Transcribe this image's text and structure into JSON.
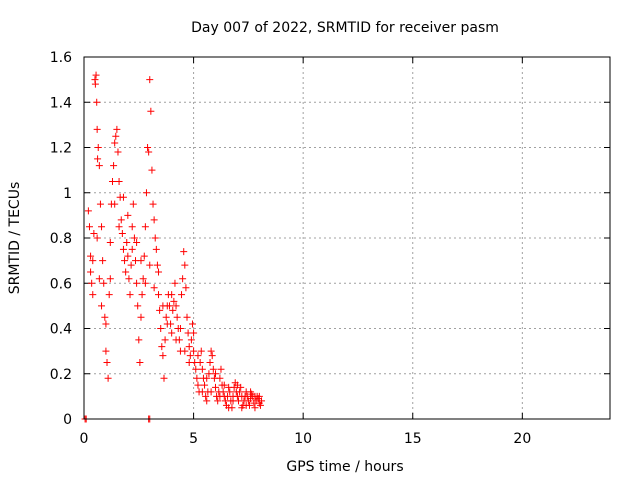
{
  "chart_data": {
    "type": "scatter",
    "title": "Day 007 of 2022, SRMTID for receiver pasm",
    "xlabel": "GPS time / hours",
    "ylabel": "SRMTID / TECUs",
    "xlim": [
      0,
      24
    ],
    "ylim": [
      0,
      1.6
    ],
    "xticks": [
      0,
      5,
      10,
      15,
      20
    ],
    "xtick_labels": [
      "0",
      "5",
      "10",
      "15",
      "20"
    ],
    "yticks": [
      0,
      0.2,
      0.4,
      0.6,
      0.8,
      1,
      1.2,
      1.4,
      1.6
    ],
    "ytick_labels": [
      "0",
      "0.2",
      "0.4",
      "0.6",
      "0.8",
      "1",
      "1.2",
      "1.4",
      "1.6"
    ],
    "grid": true,
    "marker": "+",
    "marker_color": "#ff0000",
    "series": [
      {
        "name": "SRMTID",
        "points": [
          [
            0.05,
            0.0
          ],
          [
            0.1,
            0.0
          ],
          [
            2.95,
            0.0
          ],
          [
            3.0,
            0.0
          ],
          [
            0.2,
            0.92
          ],
          [
            0.25,
            0.85
          ],
          [
            0.3,
            0.72
          ],
          [
            0.35,
            0.6
          ],
          [
            0.4,
            0.55
          ],
          [
            0.45,
            0.82
          ],
          [
            0.5,
            1.5
          ],
          [
            0.52,
            1.48
          ],
          [
            0.55,
            1.52
          ],
          [
            0.58,
            1.4
          ],
          [
            0.6,
            1.28
          ],
          [
            0.62,
            1.15
          ],
          [
            0.65,
            1.2
          ],
          [
            0.7,
            1.12
          ],
          [
            0.75,
            0.95
          ],
          [
            0.8,
            0.85
          ],
          [
            0.85,
            0.7
          ],
          [
            0.9,
            0.6
          ],
          [
            0.95,
            0.45
          ],
          [
            1.0,
            0.42
          ],
          [
            1.0,
            0.3
          ],
          [
            1.05,
            0.25
          ],
          [
            1.1,
            0.18
          ],
          [
            1.15,
            0.55
          ],
          [
            1.2,
            0.78
          ],
          [
            1.25,
            0.95
          ],
          [
            1.3,
            1.05
          ],
          [
            1.35,
            1.12
          ],
          [
            1.4,
            1.22
          ],
          [
            1.45,
            1.25
          ],
          [
            1.5,
            1.28
          ],
          [
            1.55,
            1.18
          ],
          [
            1.6,
            1.05
          ],
          [
            1.65,
            0.98
          ],
          [
            1.7,
            0.88
          ],
          [
            1.75,
            0.82
          ],
          [
            1.8,
            0.75
          ],
          [
            1.85,
            0.7
          ],
          [
            1.9,
            0.65
          ],
          [
            1.95,
            0.78
          ],
          [
            2.0,
            0.72
          ],
          [
            2.05,
            0.62
          ],
          [
            2.1,
            0.55
          ],
          [
            2.15,
            0.68
          ],
          [
            2.2,
            0.85
          ],
          [
            2.25,
            0.95
          ],
          [
            2.3,
            0.8
          ],
          [
            2.35,
            0.7
          ],
          [
            2.4,
            0.6
          ],
          [
            2.45,
            0.5
          ],
          [
            2.5,
            0.35
          ],
          [
            2.55,
            0.25
          ],
          [
            2.6,
            0.45
          ],
          [
            2.65,
            0.55
          ],
          [
            2.7,
            0.62
          ],
          [
            2.75,
            0.72
          ],
          [
            2.8,
            0.85
          ],
          [
            2.85,
            1.0
          ],
          [
            2.9,
            1.2
          ],
          [
            2.95,
            1.18
          ],
          [
            3.0,
            1.5
          ],
          [
            3.05,
            1.36
          ],
          [
            3.1,
            1.1
          ],
          [
            3.15,
            0.95
          ],
          [
            3.2,
            0.88
          ],
          [
            3.25,
            0.8
          ],
          [
            3.3,
            0.75
          ],
          [
            3.35,
            0.68
          ],
          [
            3.4,
            0.55
          ],
          [
            3.45,
            0.48
          ],
          [
            3.5,
            0.4
          ],
          [
            3.55,
            0.32
          ],
          [
            3.6,
            0.28
          ],
          [
            3.65,
            0.18
          ],
          [
            3.7,
            0.35
          ],
          [
            3.75,
            0.45
          ],
          [
            3.8,
            0.5
          ],
          [
            3.85,
            0.55
          ],
          [
            3.9,
            0.5
          ],
          [
            3.95,
            0.42
          ],
          [
            4.0,
            0.38
          ],
          [
            4.05,
            0.48
          ],
          [
            4.1,
            0.52
          ],
          [
            4.15,
            0.6
          ],
          [
            4.2,
            0.5
          ],
          [
            4.25,
            0.45
          ],
          [
            4.3,
            0.4
          ],
          [
            4.35,
            0.35
          ],
          [
            4.4,
            0.3
          ],
          [
            4.45,
            0.55
          ],
          [
            4.5,
            0.62
          ],
          [
            4.55,
            0.74
          ],
          [
            4.6,
            0.68
          ],
          [
            4.65,
            0.58
          ],
          [
            4.7,
            0.45
          ],
          [
            4.75,
            0.38
          ],
          [
            4.8,
            0.32
          ],
          [
            4.85,
            0.28
          ],
          [
            4.9,
            0.35
          ],
          [
            4.95,
            0.42
          ],
          [
            5.0,
            0.3
          ],
          [
            5.05,
            0.25
          ],
          [
            5.1,
            0.22
          ],
          [
            5.15,
            0.18
          ],
          [
            5.2,
            0.15
          ],
          [
            5.25,
            0.12
          ],
          [
            5.3,
            0.25
          ],
          [
            5.35,
            0.3
          ],
          [
            5.4,
            0.22
          ],
          [
            5.45,
            0.18
          ],
          [
            5.5,
            0.15
          ],
          [
            5.55,
            0.1
          ],
          [
            5.6,
            0.08
          ],
          [
            5.65,
            0.12
          ],
          [
            5.7,
            0.2
          ],
          [
            5.75,
            0.25
          ],
          [
            5.8,
            0.3
          ],
          [
            5.85,
            0.28
          ],
          [
            5.9,
            0.22
          ],
          [
            5.95,
            0.18
          ],
          [
            6.0,
            0.14
          ],
          [
            6.05,
            0.1
          ],
          [
            6.1,
            0.08
          ],
          [
            6.15,
            0.12
          ],
          [
            6.2,
            0.18
          ],
          [
            6.25,
            0.22
          ],
          [
            6.3,
            0.15
          ],
          [
            6.35,
            0.12
          ],
          [
            6.4,
            0.1
          ],
          [
            6.45,
            0.08
          ],
          [
            6.5,
            0.06
          ],
          [
            6.55,
            0.1
          ],
          [
            6.6,
            0.14
          ],
          [
            6.65,
            0.12
          ],
          [
            6.7,
            0.08
          ],
          [
            6.75,
            0.05
          ],
          [
            6.8,
            0.1
          ],
          [
            6.85,
            0.14
          ],
          [
            6.9,
            0.16
          ],
          [
            6.95,
            0.12
          ],
          [
            7.0,
            0.1
          ],
          [
            7.05,
            0.08
          ],
          [
            7.1,
            0.12
          ],
          [
            7.15,
            0.14
          ],
          [
            7.2,
            0.1
          ],
          [
            7.25,
            0.06
          ],
          [
            7.3,
            0.08
          ],
          [
            7.35,
            0.1
          ],
          [
            7.4,
            0.12
          ],
          [
            7.45,
            0.1
          ],
          [
            7.5,
            0.08
          ],
          [
            7.55,
            0.06
          ],
          [
            7.6,
            0.09
          ],
          [
            7.65,
            0.11
          ],
          [
            7.7,
            0.1
          ],
          [
            7.75,
            0.07
          ],
          [
            7.8,
            0.05
          ],
          [
            7.85,
            0.08
          ],
          [
            7.9,
            0.1
          ],
          [
            7.95,
            0.09
          ],
          [
            8.0,
            0.07
          ],
          [
            8.05,
            0.06
          ],
          [
            8.1,
            0.08
          ],
          [
            0.3,
            0.65
          ],
          [
            0.4,
            0.7
          ],
          [
            0.6,
            0.8
          ],
          [
            0.7,
            0.62
          ],
          [
            0.8,
            0.5
          ],
          [
            1.2,
            0.62
          ],
          [
            1.4,
            0.95
          ],
          [
            1.6,
            0.85
          ],
          [
            1.8,
            0.98
          ],
          [
            2.0,
            0.9
          ],
          [
            2.2,
            0.75
          ],
          [
            2.4,
            0.78
          ],
          [
            2.6,
            0.7
          ],
          [
            2.8,
            0.6
          ],
          [
            3.0,
            0.68
          ],
          [
            3.2,
            0.58
          ],
          [
            3.4,
            0.65
          ],
          [
            3.6,
            0.5
          ],
          [
            3.8,
            0.42
          ],
          [
            4.0,
            0.55
          ],
          [
            4.2,
            0.35
          ],
          [
            4.4,
            0.4
          ],
          [
            4.6,
            0.3
          ],
          [
            4.8,
            0.25
          ],
          [
            5.0,
            0.38
          ],
          [
            5.2,
            0.28
          ],
          [
            5.4,
            0.12
          ],
          [
            5.6,
            0.18
          ],
          [
            5.8,
            0.12
          ],
          [
            6.0,
            0.2
          ],
          [
            6.2,
            0.1
          ],
          [
            6.4,
            0.15
          ],
          [
            6.6,
            0.05
          ],
          [
            6.8,
            0.08
          ],
          [
            7.0,
            0.15
          ],
          [
            7.2,
            0.05
          ],
          [
            7.4,
            0.06
          ],
          [
            7.6,
            0.12
          ],
          [
            7.8,
            0.1
          ],
          [
            8.0,
            0.1
          ]
        ]
      }
    ]
  }
}
